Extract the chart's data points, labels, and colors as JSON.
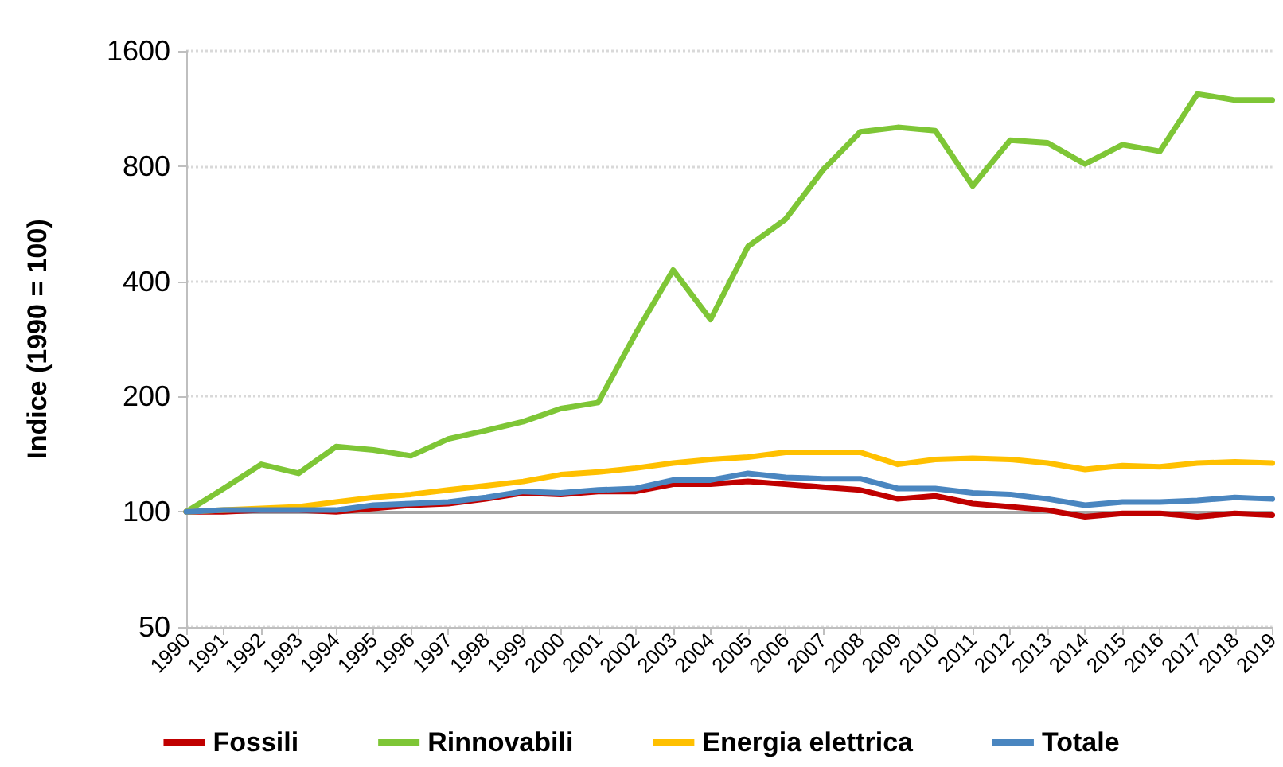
{
  "chart_data": {
    "type": "line",
    "ylabel": "Indice (1990 = 100)",
    "categories": [
      "1990",
      "1991",
      "1992",
      "1993",
      "1994",
      "1995",
      "1996",
      "1997",
      "1998",
      "1999",
      "2000",
      "2001",
      "2002",
      "2003",
      "2004",
      "2005",
      "2006",
      "2007",
      "2008",
      "2009",
      "2010",
      "2011",
      "2012",
      "2013",
      "2014",
      "2015",
      "2016",
      "2017",
      "2018",
      "2019"
    ],
    "series": [
      {
        "name": "Fossili",
        "color": "#c00000",
        "values": [
          100,
          100,
          101,
          101,
          100,
          102,
          104,
          105,
          108,
          112,
          111,
          113,
          113,
          118,
          118,
          120,
          118,
          116,
          114,
          108,
          110,
          105,
          103,
          101,
          97,
          99,
          99,
          97,
          99,
          98
        ]
      },
      {
        "name": "Rinnovabili",
        "color": "#7ec636",
        "values": [
          100,
          115,
          133,
          126,
          148,
          145,
          140,
          155,
          163,
          172,
          186,
          193,
          292,
          428,
          318,
          493,
          581,
          781,
          983,
          1010,
          990,
          710,
          935,
          920,
          810,
          910,
          875,
          1235,
          1190,
          1190
        ]
      },
      {
        "name": "Energia elettrica",
        "color": "#ffc000",
        "values": [
          100,
          101,
          102,
          103,
          106,
          109,
          111,
          114,
          117,
          120,
          125,
          127,
          130,
          134,
          137,
          139,
          143,
          143,
          143,
          133,
          137,
          138,
          137,
          134,
          129,
          132,
          131,
          134,
          135,
          134
        ]
      },
      {
        "name": "Totale",
        "color": "#4a86c0",
        "values": [
          100,
          101,
          101,
          101,
          101,
          104,
          105,
          106,
          109,
          113,
          112,
          114,
          115,
          121,
          121,
          126,
          123,
          122,
          122,
          115,
          115,
          112,
          111,
          108,
          104,
          106,
          106,
          107,
          109,
          108
        ]
      }
    ],
    "log": "y",
    "ylim": [
      50,
      1600
    ],
    "yticks": [
      50,
      100,
      200,
      400,
      800,
      1600
    ],
    "ref_lines": [
      {
        "axis": "y",
        "value": 100,
        "color": "#a6a6a6"
      }
    ],
    "grid": "y",
    "legend": "bottom",
    "marker": "none",
    "line_style": "solid"
  }
}
